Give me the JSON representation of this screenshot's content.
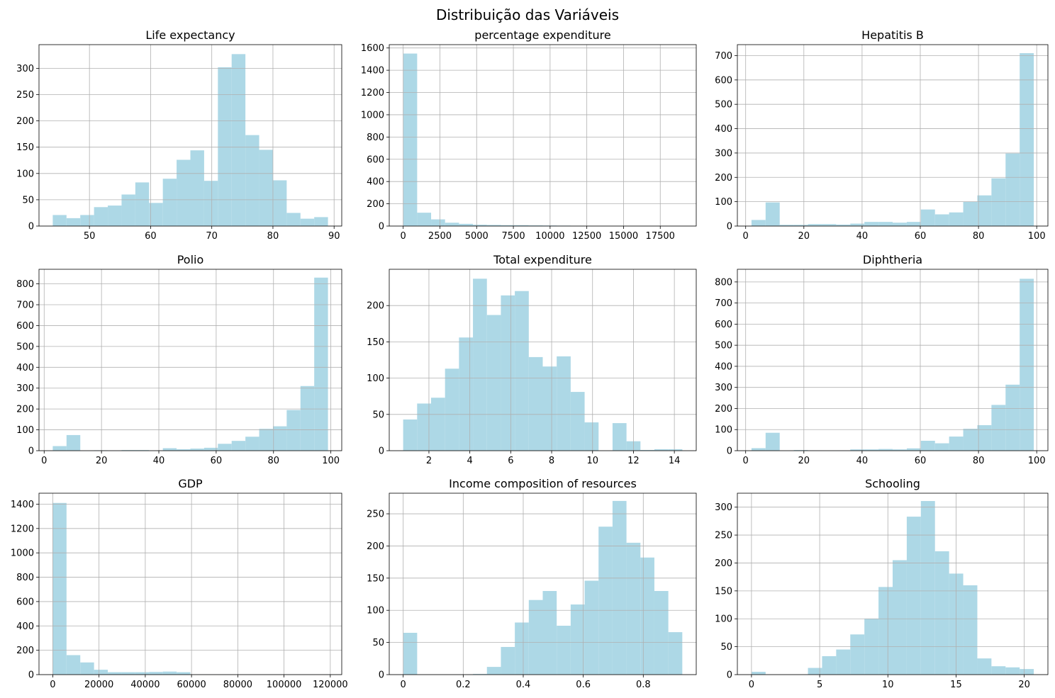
{
  "figure": {
    "suptitle": "Distribuição das Variáveis",
    "bar_color": "#add8e6",
    "grid_color": "#b0b0b0"
  },
  "chart_data": [
    {
      "type": "bar",
      "title": "Life expectancy",
      "x_range": [
        44.0,
        89.0
      ],
      "xlim": [
        41.75,
        91.25
      ],
      "ylim": [
        0,
        345
      ],
      "xticks": [
        50,
        60,
        70,
        80,
        90
      ],
      "yticks": [
        0,
        50,
        100,
        150,
        200,
        250,
        300
      ],
      "counts": [
        21,
        15,
        21,
        36,
        39,
        60,
        83,
        44,
        90,
        126,
        144,
        86,
        302,
        327,
        173,
        145,
        87,
        25,
        14,
        17
      ]
    },
    {
      "type": "bar",
      "title": "percentage expenditure",
      "x_range": [
        0,
        19000
      ],
      "xlim": [
        -950,
        19950
      ],
      "ylim": [
        0,
        1630
      ],
      "xticks": [
        0,
        2500,
        5000,
        7500,
        10000,
        12500,
        15000,
        17500
      ],
      "yticks": [
        0,
        200,
        400,
        600,
        800,
        1000,
        1200,
        1400,
        1600
      ],
      "counts": [
        1550,
        120,
        60,
        30,
        20,
        12,
        10,
        8,
        8,
        6,
        5,
        4,
        3,
        2,
        2,
        1,
        1,
        1,
        0,
        1
      ]
    },
    {
      "type": "bar",
      "title": "Hepatitis B",
      "x_range": [
        2,
        99
      ],
      "xlim": [
        -2.85,
        103.85
      ],
      "ylim": [
        0,
        745
      ],
      "xticks": [
        0,
        20,
        40,
        60,
        80,
        100
      ],
      "yticks": [
        0,
        100,
        200,
        300,
        400,
        500,
        600,
        700
      ],
      "counts": [
        25,
        97,
        5,
        5,
        8,
        8,
        6,
        10,
        17,
        17,
        14,
        17,
        68,
        48,
        56,
        100,
        126,
        196,
        298,
        710
      ]
    },
    {
      "type": "bar",
      "title": "Polio",
      "x_range": [
        3,
        99
      ],
      "xlim": [
        -1.8,
        103.8
      ],
      "ylim": [
        0,
        870
      ],
      "xticks": [
        0,
        20,
        40,
        60,
        80,
        100
      ],
      "yticks": [
        0,
        100,
        200,
        300,
        400,
        500,
        600,
        700,
        800
      ],
      "counts": [
        22,
        75,
        0,
        2,
        1,
        3,
        3,
        1,
        12,
        7,
        10,
        14,
        33,
        47,
        67,
        105,
        117,
        195,
        310,
        830
      ]
    },
    {
      "type": "bar",
      "title": "Total expenditure",
      "x_range": [
        0.74,
        14.39
      ],
      "xlim": [
        0.06,
        15.07
      ],
      "ylim": [
        0,
        250
      ],
      "xticks": [
        2,
        4,
        6,
        8,
        10,
        12,
        14
      ],
      "yticks": [
        0,
        50,
        100,
        150,
        200
      ],
      "counts": [
        43,
        65,
        73,
        113,
        156,
        237,
        187,
        214,
        220,
        129,
        116,
        130,
        81,
        39,
        0,
        38,
        13,
        1,
        2,
        2
      ]
    },
    {
      "type": "bar",
      "title": "Diphtheria",
      "x_range": [
        2,
        99
      ],
      "xlim": [
        -2.85,
        103.85
      ],
      "ylim": [
        0,
        860
      ],
      "xticks": [
        0,
        20,
        40,
        60,
        80,
        100
      ],
      "yticks": [
        0,
        100,
        200,
        300,
        400,
        500,
        600,
        700,
        800
      ],
      "counts": [
        12,
        85,
        0,
        3,
        1,
        0,
        1,
        6,
        6,
        8,
        6,
        11,
        47,
        35,
        67,
        104,
        121,
        217,
        313,
        815
      ]
    },
    {
      "type": "bar",
      "title": "GDP",
      "x_range": [
        0,
        119000
      ],
      "xlim": [
        -5950,
        124950
      ],
      "ylim": [
        0,
        1490
      ],
      "xticks": [
        0,
        20000,
        40000,
        60000,
        80000,
        100000,
        120000
      ],
      "yticks": [
        0,
        200,
        400,
        600,
        800,
        1000,
        1200,
        1400
      ],
      "counts": [
        1410,
        160,
        100,
        40,
        20,
        20,
        20,
        22,
        25,
        20,
        2,
        2,
        0,
        1,
        0,
        0,
        1,
        0,
        0,
        1
      ]
    },
    {
      "type": "bar",
      "title": "Income composition of resources",
      "x_range": [
        0,
        0.93
      ],
      "xlim": [
        -0.0465,
        0.9765
      ],
      "ylim": [
        0,
        282
      ],
      "xticks": [
        0.0,
        0.2,
        0.4,
        0.6,
        0.8
      ],
      "yticks": [
        0,
        50,
        100,
        150,
        200,
        250
      ],
      "counts": [
        65,
        0,
        0,
        0,
        0,
        1,
        12,
        43,
        81,
        116,
        130,
        76,
        109,
        146,
        230,
        270,
        205,
        182,
        130,
        66
      ]
    },
    {
      "type": "bar",
      "title": "Schooling",
      "x_range": [
        0,
        20.7
      ],
      "xlim": [
        -1.035,
        21.735
      ],
      "ylim": [
        0,
        325
      ],
      "xticks": [
        0,
        5,
        10,
        15,
        20
      ],
      "yticks": [
        0,
        50,
        100,
        150,
        200,
        250,
        300
      ],
      "counts": [
        5,
        0,
        0,
        0,
        12,
        33,
        45,
        72,
        100,
        157,
        205,
        283,
        311,
        221,
        181,
        160,
        29,
        15,
        13,
        10
      ]
    }
  ]
}
